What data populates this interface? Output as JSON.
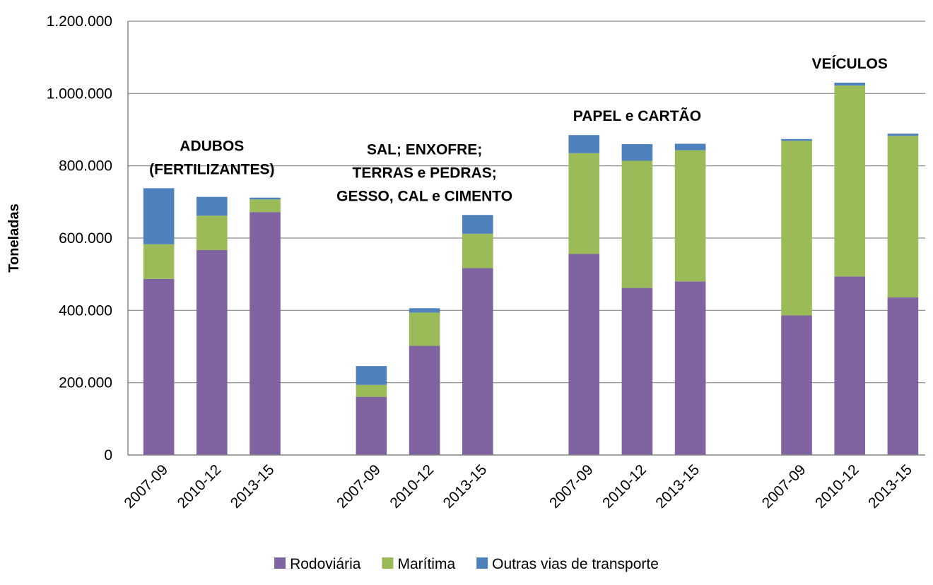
{
  "chart_data": {
    "type": "bar",
    "stacked": true,
    "ylabel": "Toneladas",
    "ylim": [
      0,
      1200000
    ],
    "yticks": [
      0,
      200000,
      400000,
      600000,
      800000,
      1000000,
      1200000
    ],
    "ytick_labels": [
      "0",
      "200.000",
      "400.000",
      "600.000",
      "800.000",
      "1.000.000",
      "1.200.000"
    ],
    "grid": true,
    "legend_position": "bottom",
    "colors": {
      "Rodoviária": "#8064a2",
      "Marítima": "#9bbb59",
      "Outras vias de transporte": "#4f81bd"
    },
    "groups": [
      {
        "label": [
          "ADUBOS",
          "(FERTILIZANTES)"
        ],
        "categories": [
          "2007-09",
          "2010-12",
          "2013-15"
        ],
        "series": [
          {
            "name": "Rodoviária",
            "values": [
              487000,
              567000,
              672000
            ]
          },
          {
            "name": "Marítima",
            "values": [
              96000,
              95000,
              35000
            ]
          },
          {
            "name": "Outras vias de transporte",
            "values": [
              155000,
              52000,
              5000
            ]
          }
        ]
      },
      {
        "label": [
          "SAL; ENXOFRE;",
          "TERRAS e PEDRAS;",
          "GESSO, CAL e CIMENTO"
        ],
        "categories": [
          "2007-09",
          "2010-12",
          "2013-15"
        ],
        "series": [
          {
            "name": "Rodoviária",
            "values": [
              161000,
              302000,
              517000
            ]
          },
          {
            "name": "Marítima",
            "values": [
              33000,
              92000,
              95000
            ]
          },
          {
            "name": "Outras vias de transporte",
            "values": [
              52000,
              12000,
              52000
            ]
          }
        ]
      },
      {
        "label": [
          "PAPEL e CARTÃO"
        ],
        "categories": [
          "2007-09",
          "2010-12",
          "2013-15"
        ],
        "series": [
          {
            "name": "Rodoviária",
            "values": [
              556000,
              462000,
              480000
            ]
          },
          {
            "name": "Marítima",
            "values": [
              279000,
              352000,
              363000
            ]
          },
          {
            "name": "Outras vias de transporte",
            "values": [
              50000,
              46000,
              18000
            ]
          }
        ]
      },
      {
        "label": [
          "VEÍCULOS"
        ],
        "categories": [
          "2007-09",
          "2010-12",
          "2013-15"
        ],
        "series": [
          {
            "name": "Rodoviária",
            "values": [
              386000,
              494000,
              436000
            ]
          },
          {
            "name": "Marítima",
            "values": [
              483000,
              528000,
              447000
            ]
          },
          {
            "name": "Outras vias de transporte",
            "values": [
              5000,
              8000,
              6000
            ]
          }
        ]
      }
    ],
    "legend": [
      "Rodoviária",
      "Marítima",
      "Outras vias de transporte"
    ]
  }
}
